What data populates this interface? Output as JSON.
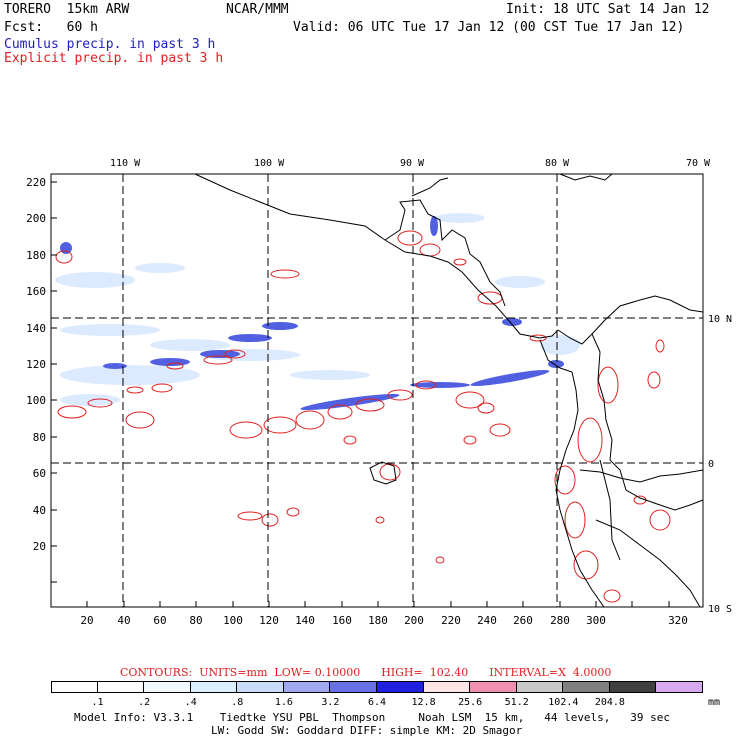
{
  "header": {
    "model": "TORERO  15km ARW",
    "org": "NCAR/MMM",
    "init": "Init: 18 UTC Sat 14 Jan 12",
    "fcst": "Fcst:   60 h",
    "valid": "Valid: 06 UTC Tue 17 Jan 12 (00 CST Tue 17 Jan 12)",
    "cumulus": "Cumulus precip. in past 3 h",
    "explicit": "Explicit precip. in past 3 h"
  },
  "map": {
    "top_lon_labels": [
      "110 W",
      "100 W",
      "90 W",
      "80 W",
      "70 W"
    ],
    "right_lat_labels": [
      "10 N",
      "0",
      "10 S"
    ],
    "left_ticks": [
      "220",
      "200",
      "180",
      "160",
      "140",
      "120",
      "100",
      "80",
      "60",
      "40",
      "20"
    ],
    "bottom_ticks": [
      "20",
      "40",
      "60",
      "80",
      "100",
      "120",
      "140",
      "160",
      "180",
      "200",
      "220",
      "240",
      "260",
      "280",
      "300",
      "320"
    ]
  },
  "contours": {
    "text": "CONTOURS:  UNITS=mm  LOW= 0.10000      HIGH=  102.40      INTERVAL=X  4.0000"
  },
  "colorbar": {
    "labels": [
      ".1",
      ".2",
      ".4",
      ".8",
      "1.6",
      "3.2",
      "6.4",
      "12.8",
      "25.6",
      "51.2",
      "102.4",
      "204.8"
    ],
    "unit": "mm",
    "colors": [
      "#ffffff",
      "#ffffff",
      "#f0faff",
      "#d8f0ff",
      "#c8dcf8",
      "#a0a8f0",
      "#6870e8",
      "#2020e0",
      "#fce4e4",
      "#f090b0",
      "#c8c8c8",
      "#808080",
      "#404040",
      "#d8a8f0"
    ]
  },
  "footer": {
    "line1": "Model Info: V3.3.1    Tiedtke YSU PBL  Thompson     Noah LSM  15 km,   44 levels,   39 sec",
    "line2": "LW: Godd SW: Goddard DIFF: simple KM: 2D Smagor"
  }
}
